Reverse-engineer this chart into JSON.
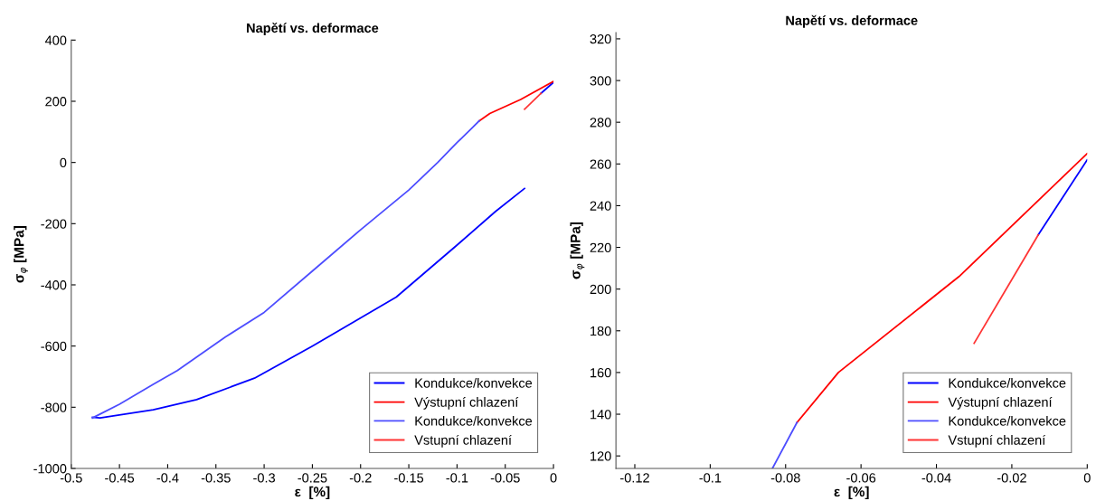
{
  "chart_data": [
    {
      "type": "line",
      "title": "Napětí vs. deformace",
      "xlabel": "ε  [%]",
      "ylabel": "σ$_{φ}$ [MPa]",
      "xlim": [
        -0.5,
        0
      ],
      "ylim": [
        -1000,
        400
      ],
      "xticks": [
        -0.5,
        -0.45,
        -0.4,
        -0.35,
        -0.3,
        -0.25,
        -0.2,
        -0.15,
        -0.1,
        -0.05,
        0
      ],
      "yticks": [
        -1000,
        -800,
        -600,
        -400,
        -200,
        0,
        200,
        400
      ],
      "grid": false,
      "legend": "bottom right",
      "line_style": "solid",
      "marker": "none",
      "series": [
        {
          "name": "Kondukce/konvekce",
          "color": "#0000ff",
          "x": [
            -0.03,
            -0.06,
            -0.1,
            -0.163,
            -0.25,
            -0.31,
            -0.37,
            -0.415,
            -0.47,
            -0.478
          ],
          "values": [
            -85,
            -160,
            -270,
            -440,
            -600,
            -705,
            -775,
            -808,
            -835,
            -833
          ]
        },
        {
          "color": "#0000ff",
          "x": [
            -0.013,
            0
          ],
          "values": [
            226,
            262
          ]
        },
        {
          "name": "Výstupní chlazení",
          "color": "#ff0000",
          "x": [
            -0.077,
            -0.066,
            -0.034,
            0
          ],
          "values": [
            136,
            160,
            206,
            265
          ]
        },
        {
          "name": "Kondukce/konvekce",
          "color": "#4d4dff",
          "x": [
            -0.478,
            -0.45,
            -0.415,
            -0.39,
            -0.34,
            -0.3,
            -0.25,
            -0.2,
            -0.15,
            -0.12,
            -0.1,
            -0.085,
            -0.077
          ],
          "values": [
            -835,
            -790,
            -725,
            -680,
            -570,
            -490,
            -355,
            -220,
            -90,
            0,
            65,
            111,
            136
          ]
        },
        {
          "name": "Vstupní chlazení",
          "color": "#ff3333",
          "x": [
            -0.03,
            -0.013
          ],
          "values": [
            174,
            226
          ]
        }
      ]
    },
    {
      "type": "line",
      "title": "Napětí vs. deformace",
      "xlabel": "ε  [%]",
      "ylabel": "σ$_{φ}$ [MPa]",
      "xlim": [
        -0.125,
        0
      ],
      "ylim": [
        114,
        323
      ],
      "xticks": [
        -0.12,
        -0.1,
        -0.08,
        -0.06,
        -0.04,
        -0.02,
        0
      ],
      "yticks": [
        120,
        140,
        160,
        180,
        200,
        220,
        240,
        260,
        280,
        300,
        320
      ],
      "grid": false,
      "legend": "bottom right",
      "line_style": "solid",
      "marker": "none",
      "series": [
        {
          "name": "Kondukce/konvekce",
          "color": "#0000ff",
          "x": [
            -0.013,
            0
          ],
          "values": [
            226,
            262
          ]
        },
        {
          "name": "Výstupní chlazení",
          "color": "#ff0000",
          "x": [
            -0.077,
            -0.066,
            -0.034,
            0
          ],
          "values": [
            136,
            160,
            206,
            265
          ]
        },
        {
          "name": "Kondukce/konvekce",
          "color": "#4d4dff",
          "x": [
            -0.0835,
            -0.077
          ],
          "values": [
            114,
            136
          ]
        },
        {
          "name": "Vstupní chlazení",
          "color": "#ff3333",
          "x": [
            -0.03,
            -0.013
          ],
          "values": [
            174,
            226
          ]
        }
      ]
    }
  ]
}
